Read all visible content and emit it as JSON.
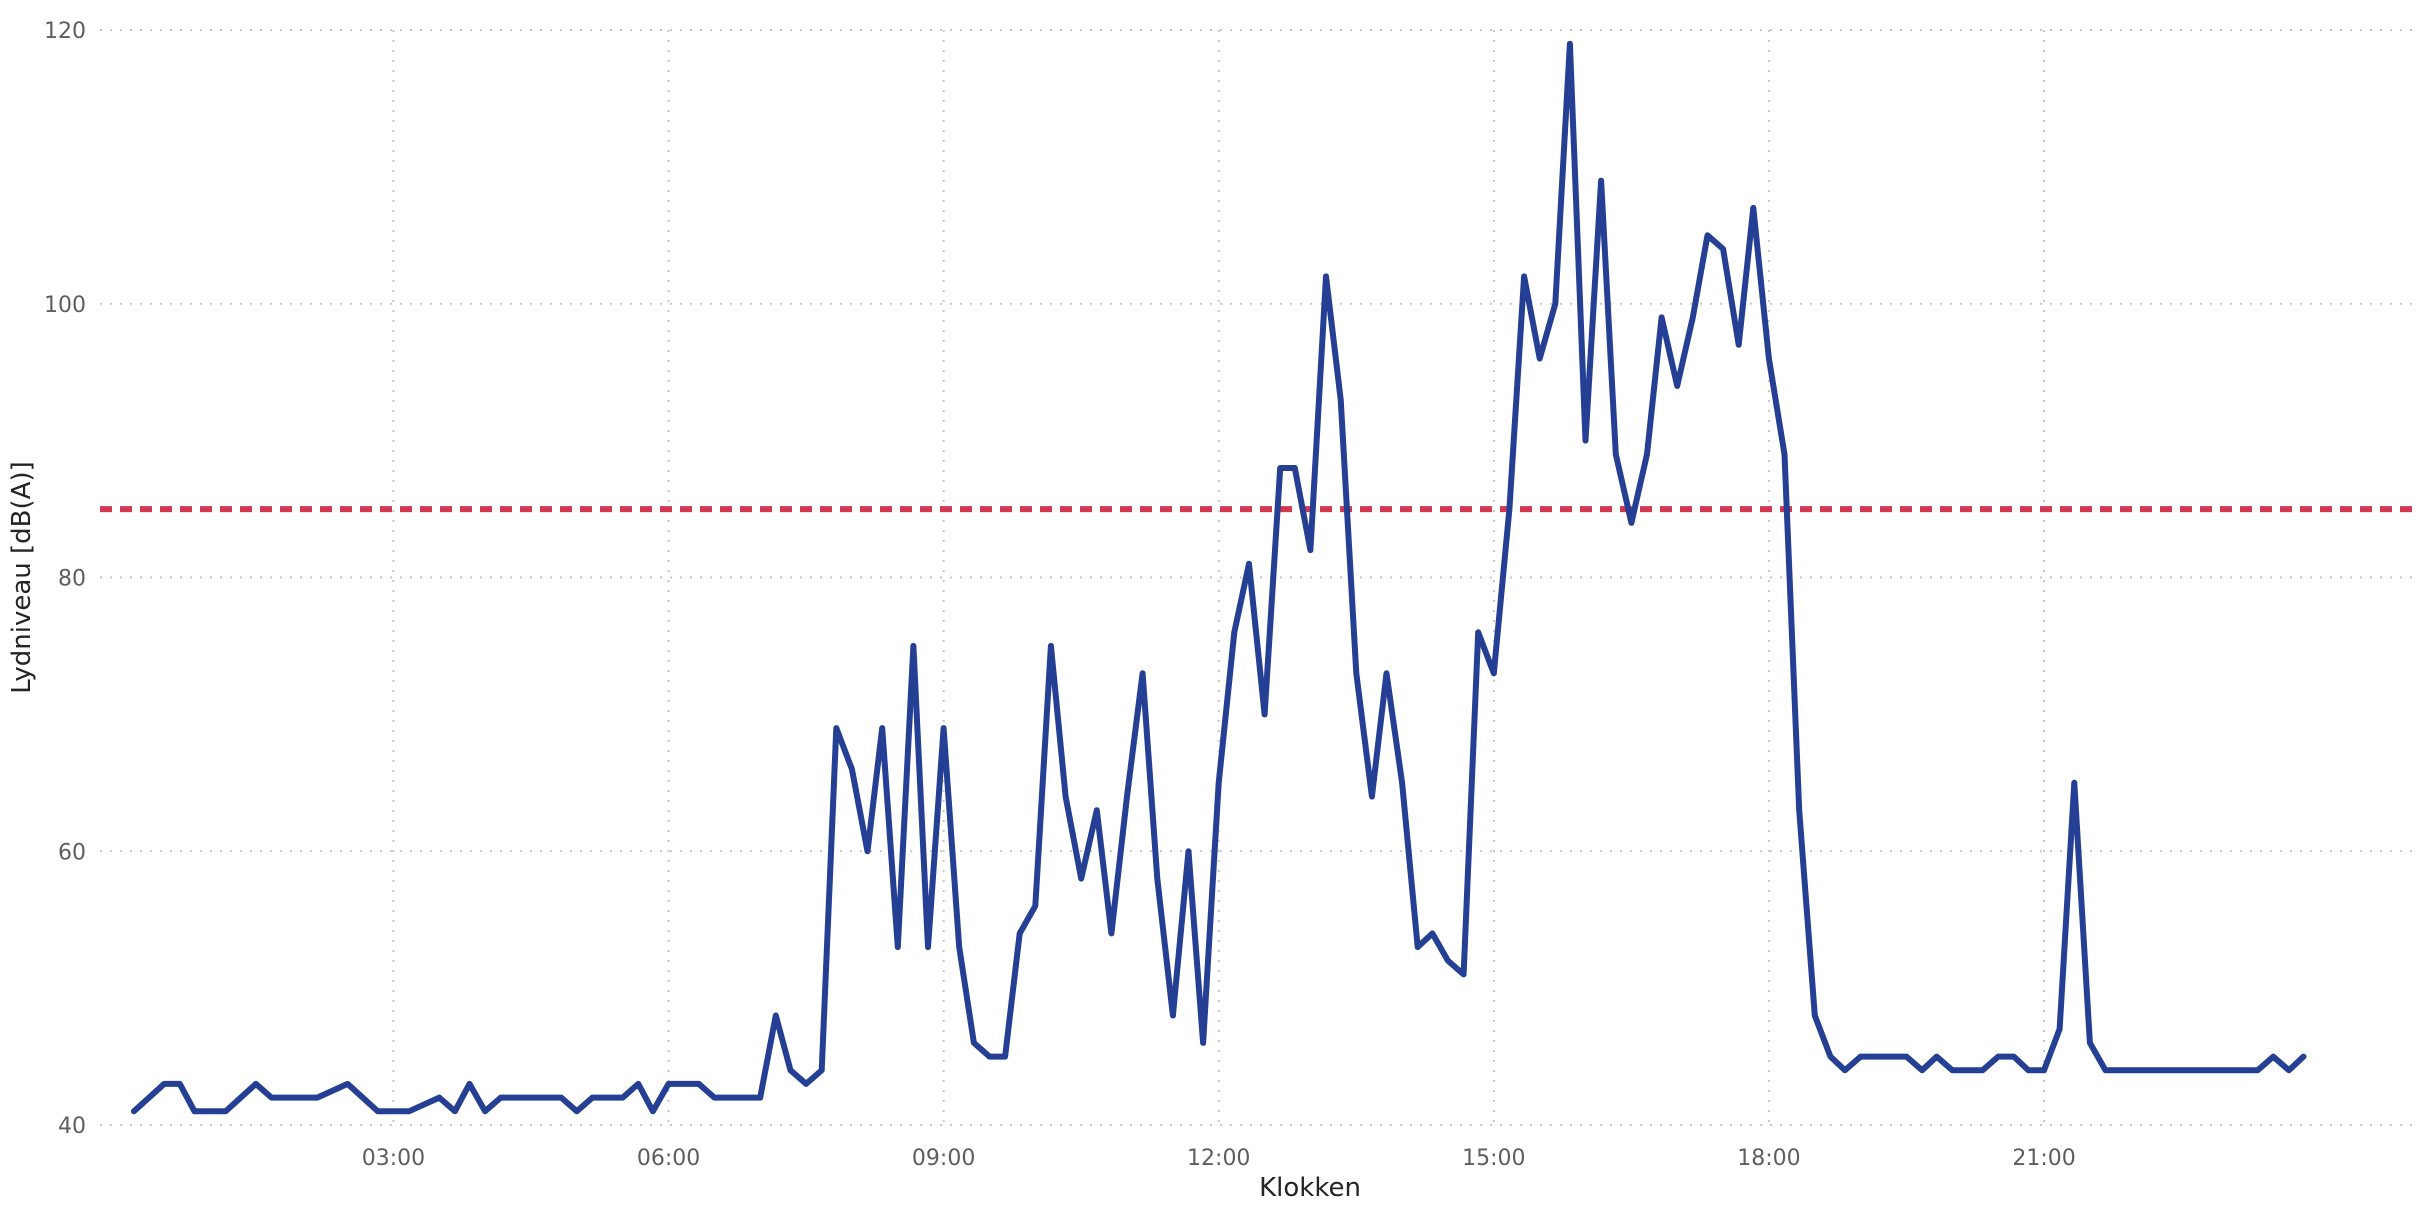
{
  "chart_data": {
    "type": "line",
    "xlabel": "Klokken",
    "ylabel": "Lydniveau [dB(A)]",
    "ylim": [
      40,
      120
    ],
    "yticks": [
      40,
      60,
      80,
      100,
      120
    ],
    "xticks": [
      {
        "value": 3,
        "label": "03:00"
      },
      {
        "value": 6,
        "label": "06:00"
      },
      {
        "value": 9,
        "label": "09:00"
      },
      {
        "value": 12,
        "label": "12:00"
      },
      {
        "value": 15,
        "label": "15:00"
      },
      {
        "value": 18,
        "label": "18:00"
      },
      {
        "value": 21,
        "label": "21:00"
      }
    ],
    "xlim": [
      -0.2,
      25.1
    ],
    "grid": true,
    "series": [
      {
        "color": "#243f93",
        "x": [
          0.17,
          0.5,
          0.67,
          0.83,
          1.0,
          1.17,
          1.5,
          1.67,
          2.0,
          2.17,
          2.5,
          2.83,
          3.0,
          3.17,
          3.5,
          3.67,
          3.83,
          4.0,
          4.17,
          4.5,
          4.83,
          5.0,
          5.17,
          5.33,
          5.5,
          5.67,
          5.83,
          6.0,
          6.17,
          6.33,
          6.5,
          6.67,
          6.83,
          7.0,
          7.17,
          7.33,
          7.5,
          7.67,
          7.83,
          8.0,
          8.17,
          8.33,
          8.5,
          8.67,
          8.83,
          9.0,
          9.17,
          9.33,
          9.5,
          9.67,
          9.83,
          10.0,
          10.17,
          10.33,
          10.5,
          10.67,
          10.83,
          11.0,
          11.17,
          11.33,
          11.5,
          11.67,
          11.83,
          12.0,
          12.17,
          12.33,
          12.5,
          12.67,
          12.83,
          13.0,
          13.17,
          13.33,
          13.5,
          13.67,
          13.83,
          14.0,
          14.17,
          14.33,
          14.5,
          14.67,
          14.83,
          15.0,
          15.17,
          15.33,
          15.5,
          15.67,
          15.83,
          16.0,
          16.17,
          16.33,
          16.5,
          16.67,
          16.83,
          17.0,
          17.17,
          17.33,
          17.5,
          17.67,
          17.83,
          18.0,
          18.17,
          18.33,
          18.5,
          18.67,
          18.83,
          19.0,
          19.17,
          19.33,
          19.5,
          19.67,
          19.83,
          20.0,
          20.17,
          20.33,
          20.5,
          20.67,
          20.83,
          21.0,
          21.17,
          21.33,
          21.5,
          21.67,
          21.83,
          22.0,
          22.17,
          22.33,
          22.5,
          22.67,
          22.83,
          23.0,
          23.17,
          23.33,
          23.5,
          23.67,
          23.83
        ],
        "values": [
          41,
          43,
          43,
          41,
          41,
          41,
          43,
          42,
          42,
          42,
          43,
          41,
          41,
          41,
          42,
          41,
          43,
          41,
          42,
          42,
          42,
          41,
          42,
          42,
          42,
          43,
          41,
          43,
          43,
          43,
          42,
          42,
          42,
          42,
          48,
          44,
          43,
          44,
          69,
          66,
          60,
          69,
          53,
          75,
          53,
          69,
          53,
          46,
          45,
          45,
          54,
          56,
          75,
          64,
          58,
          63,
          54,
          64,
          73,
          58,
          48,
          60,
          46,
          65,
          76,
          81,
          70,
          88,
          88,
          82,
          102,
          93,
          73,
          64,
          73,
          65,
          53,
          54,
          52,
          51,
          76,
          73,
          85,
          102,
          96,
          100,
          119,
          90,
          109,
          89,
          84,
          89,
          99,
          94,
          99,
          105,
          104,
          97,
          107,
          96,
          89,
          63,
          48,
          45,
          44,
          45,
          45,
          45,
          45,
          44,
          45,
          44,
          44,
          44,
          45,
          45,
          44,
          44,
          47,
          65,
          46,
          44,
          44,
          44,
          44,
          44,
          44,
          44,
          44,
          44,
          44,
          44,
          45,
          44,
          45
        ]
      }
    ],
    "reference_line": {
      "value": 85,
      "color": "#d1384f"
    }
  }
}
